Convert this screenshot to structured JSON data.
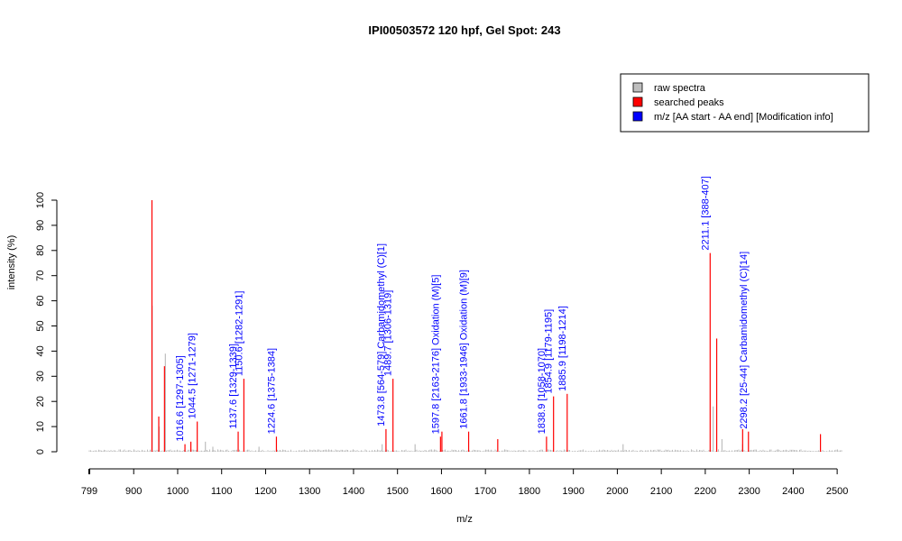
{
  "chart_data": {
    "type": "bar",
    "title": "IPI00503572  120 hpf, Gel Spot: 243",
    "xlabel": "m/z",
    "ylabel": "intensity (%)",
    "xlim": [
      799,
      2510
    ],
    "ylim": [
      0,
      100
    ],
    "x_ticks": [
      799,
      900,
      1000,
      1100,
      1200,
      1300,
      1400,
      1500,
      1600,
      1700,
      1800,
      1900,
      2000,
      2100,
      2200,
      2300,
      2400,
      2500
    ],
    "y_ticks": [
      0,
      10,
      20,
      30,
      40,
      50,
      60,
      70,
      80,
      90,
      100
    ],
    "legend": {
      "position": "top-right",
      "entries": [
        {
          "label": "raw spectra",
          "color": "#bebebe"
        },
        {
          "label": "searched peaks",
          "color": "#ff0000"
        },
        {
          "label": "m/z [AA start - AA end] [Modification info]",
          "color": "#0000ff"
        }
      ]
    },
    "colors": {
      "raw": "#bebebe",
      "peak": "#ff0000",
      "annotation": "#0000ff"
    },
    "raw_peaks": [
      {
        "x": 942,
        "y": 58
      },
      {
        "x": 958,
        "y": 10
      },
      {
        "x": 972,
        "y": 39
      },
      {
        "x": 1063,
        "y": 4
      },
      {
        "x": 1080,
        "y": 2
      },
      {
        "x": 1185,
        "y": 2
      },
      {
        "x": 1465,
        "y": 3
      },
      {
        "x": 1540,
        "y": 3
      },
      {
        "x": 2013,
        "y": 3
      },
      {
        "x": 2218,
        "y": 18
      },
      {
        "x": 2238,
        "y": 5
      },
      {
        "x": 2285,
        "y": 3
      }
    ],
    "searched_peaks": [
      {
        "x": 941.5,
        "y": 100
      },
      {
        "x": 957,
        "y": 14
      },
      {
        "x": 970,
        "y": 34
      },
      {
        "x": 1016.6,
        "y": 3
      },
      {
        "x": 1030,
        "y": 4
      },
      {
        "x": 1044.5,
        "y": 12
      },
      {
        "x": 1137.6,
        "y": 8
      },
      {
        "x": 1150.6,
        "y": 29
      },
      {
        "x": 1224.6,
        "y": 6
      },
      {
        "x": 1473.8,
        "y": 9
      },
      {
        "x": 1489.7,
        "y": 29
      },
      {
        "x": 1597.8,
        "y": 6
      },
      {
        "x": 1601,
        "y": 8
      },
      {
        "x": 1661.8,
        "y": 8
      },
      {
        "x": 1728,
        "y": 5
      },
      {
        "x": 1838.9,
        "y": 6
      },
      {
        "x": 1854.9,
        "y": 22
      },
      {
        "x": 1885.9,
        "y": 23
      },
      {
        "x": 2211.1,
        "y": 79
      },
      {
        "x": 2226,
        "y": 45
      },
      {
        "x": 2285,
        "y": 9
      },
      {
        "x": 2298.2,
        "y": 8
      },
      {
        "x": 2462,
        "y": 7
      }
    ],
    "annotations": [
      {
        "x": 1016.6,
        "y": 3,
        "label": "1016.6 [1297-1305]"
      },
      {
        "x": 1044.5,
        "y": 12,
        "label": "1044.5 [1271-1279]"
      },
      {
        "x": 1137.6,
        "y": 8,
        "label": "1137.6 [1329-1339]"
      },
      {
        "x": 1150.6,
        "y": 29,
        "label": "1150.6 [1282-1291]"
      },
      {
        "x": 1224.6,
        "y": 6,
        "label": "1224.6 [1375-1384]"
      },
      {
        "x": 1473.8,
        "y": 9,
        "label": "1473.8 [564-579] Carbamidomethyl (C)[1]"
      },
      {
        "x": 1489.7,
        "y": 29,
        "label": "1489.7 [1306-1319]"
      },
      {
        "x": 1597.8,
        "y": 6,
        "label": "1597.8 [2163-2176] Oxidation (M)[5]"
      },
      {
        "x": 1661.8,
        "y": 8,
        "label": "1661.8 [1933-1946] Oxidation (M)[9]"
      },
      {
        "x": 1838.9,
        "y": 6,
        "label": "1838.9 [1058-1070]"
      },
      {
        "x": 1854.9,
        "y": 22,
        "label": "1854.9 [1179-1195]"
      },
      {
        "x": 1885.9,
        "y": 23,
        "label": "1885.9 [1198-1214]"
      },
      {
        "x": 2211.1,
        "y": 79,
        "label": "2211.1 [388-407]"
      },
      {
        "x": 2298.2,
        "y": 8,
        "label": "2298.2 [25-44] Carbamidomethyl (C)[14]"
      }
    ]
  }
}
